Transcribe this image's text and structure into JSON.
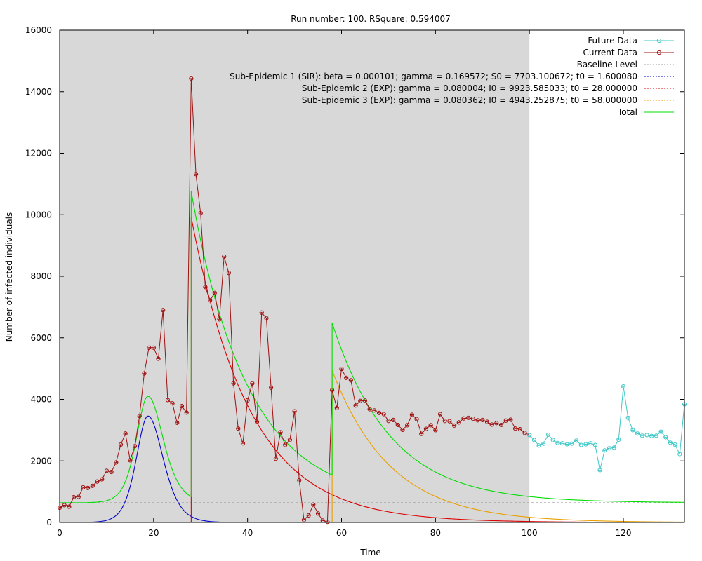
{
  "chart_data": {
    "type": "line",
    "title": "Run number: 100. RSquare: 0.594007",
    "xlabel": "Time",
    "ylabel": "Number of infected individuals",
    "xlim": [
      0,
      133
    ],
    "ylim": [
      0,
      16000
    ],
    "xticks": [
      0,
      20,
      40,
      60,
      80,
      100,
      120
    ],
    "yticks": [
      0,
      2000,
      4000,
      6000,
      8000,
      10000,
      12000,
      14000,
      16000
    ],
    "shaded_region": {
      "x": [
        0,
        100
      ],
      "color": "#d8d8d8"
    },
    "grid": false,
    "legend_position": "top-right",
    "legend": [
      {
        "label": "Future Data",
        "color": "#40c8c8",
        "style": "line-point"
      },
      {
        "label": "Current Data",
        "color": "#a01010",
        "style": "line-point"
      },
      {
        "label": "Baseline Level",
        "color": "#a0a0a0",
        "style": "dotted"
      },
      {
        "label": "Sub-Epidemic 1 (SIR): beta = 0.000101; gamma = 0.169572; S0 = 7703.100672; t0 = 1.600080",
        "color": "#0000cc",
        "style": "dotted"
      },
      {
        "label": "Sub-Epidemic 2 (EXP): gamma = 0.080004; I0 = 9923.585033; t0 = 28.000000",
        "color": "#dd0000",
        "style": "dotted"
      },
      {
        "label": "Sub-Epidemic 3 (EXP): gamma = 0.080362; I0 = 4943.252875; t0 = 58.000000",
        "color": "#e8a000",
        "style": "dotted"
      },
      {
        "label": "Total",
        "color": "#00dd00",
        "style": "line"
      }
    ],
    "series": [
      {
        "name": "Current Data",
        "color": "#a01010",
        "x": [
          0,
          1,
          2,
          3,
          4,
          5,
          6,
          7,
          8,
          9,
          10,
          11,
          12,
          13,
          14,
          15,
          16,
          17,
          18,
          19,
          20,
          21,
          22,
          23,
          24,
          25,
          26,
          27,
          28,
          29,
          30,
          31,
          32,
          33,
          34,
          35,
          36,
          37,
          38,
          39,
          40,
          41,
          42,
          43,
          44,
          45,
          46,
          47,
          48,
          49,
          50,
          51,
          52,
          53,
          54,
          55,
          56,
          57,
          58,
          59,
          60,
          61,
          62,
          63,
          64,
          65,
          66,
          67,
          68,
          69,
          70,
          71,
          72,
          73,
          74,
          75,
          76,
          77,
          78,
          79,
          80,
          81,
          82,
          83,
          84,
          85,
          86,
          87,
          88,
          89,
          90,
          91,
          92,
          93,
          94,
          95,
          96,
          97,
          98,
          99,
          100
        ],
        "y": [
          480,
          560,
          510,
          820,
          830,
          1140,
          1120,
          1190,
          1330,
          1400,
          1680,
          1640,
          1950,
          2530,
          2890,
          2020,
          2480,
          3460,
          4840,
          5680,
          5680,
          5320,
          6900,
          3980,
          3870,
          3240,
          3780,
          3570,
          14430,
          11320,
          10050,
          7650,
          7220,
          7460,
          6600,
          8640,
          8110,
          4520,
          3050,
          2570,
          3970,
          4520,
          3270,
          6820,
          6640,
          4380,
          2070,
          2930,
          2520,
          2680,
          3610,
          1370,
          80,
          230,
          580,
          290,
          60,
          20,
          4300,
          3720,
          4990,
          4700,
          4620,
          3800,
          3950,
          3960,
          3680,
          3640,
          3560,
          3520,
          3300,
          3330,
          3170,
          3010,
          3160,
          3500,
          3360,
          2880,
          3040,
          3160,
          3000,
          3520,
          3300,
          3290,
          3150,
          3250,
          3380,
          3400,
          3370,
          3320,
          3330,
          3270,
          3180,
          3230,
          3170,
          3310,
          3340,
          3050,
          3030,
          2910,
          2840
        ]
      },
      {
        "name": "Future Data",
        "color": "#40c8c8",
        "x": [
          100,
          101,
          102,
          103,
          104,
          105,
          106,
          107,
          108,
          109,
          110,
          111,
          112,
          113,
          114,
          115,
          116,
          117,
          118,
          119,
          120,
          121,
          122,
          123,
          124,
          125,
          126,
          127,
          128,
          129,
          130,
          131,
          132,
          133
        ],
        "y": [
          2840,
          2680,
          2500,
          2560,
          2850,
          2680,
          2580,
          2570,
          2540,
          2560,
          2660,
          2520,
          2540,
          2570,
          2520,
          1700,
          2340,
          2410,
          2430,
          2690,
          4420,
          3400,
          3000,
          2890,
          2820,
          2840,
          2810,
          2820,
          2950,
          2770,
          2590,
          2530,
          2220,
          3840
        ]
      }
    ],
    "baseline": 640,
    "sub_epidemics": [
      {
        "model": "SIR",
        "beta": 0.000101,
        "gamma": 0.169572,
        "S0": 7703.100672,
        "t0": 1.60008,
        "peak": 3460,
        "peak_t": 18.8,
        "color": "#0000cc"
      },
      {
        "model": "EXP",
        "gamma": 0.080004,
        "I0": 9923.585033,
        "t0": 28.0,
        "color": "#dd0000"
      },
      {
        "model": "EXP",
        "gamma": 0.080362,
        "I0": 4943.252875,
        "t0": 58.0,
        "color": "#e8a000"
      }
    ]
  }
}
